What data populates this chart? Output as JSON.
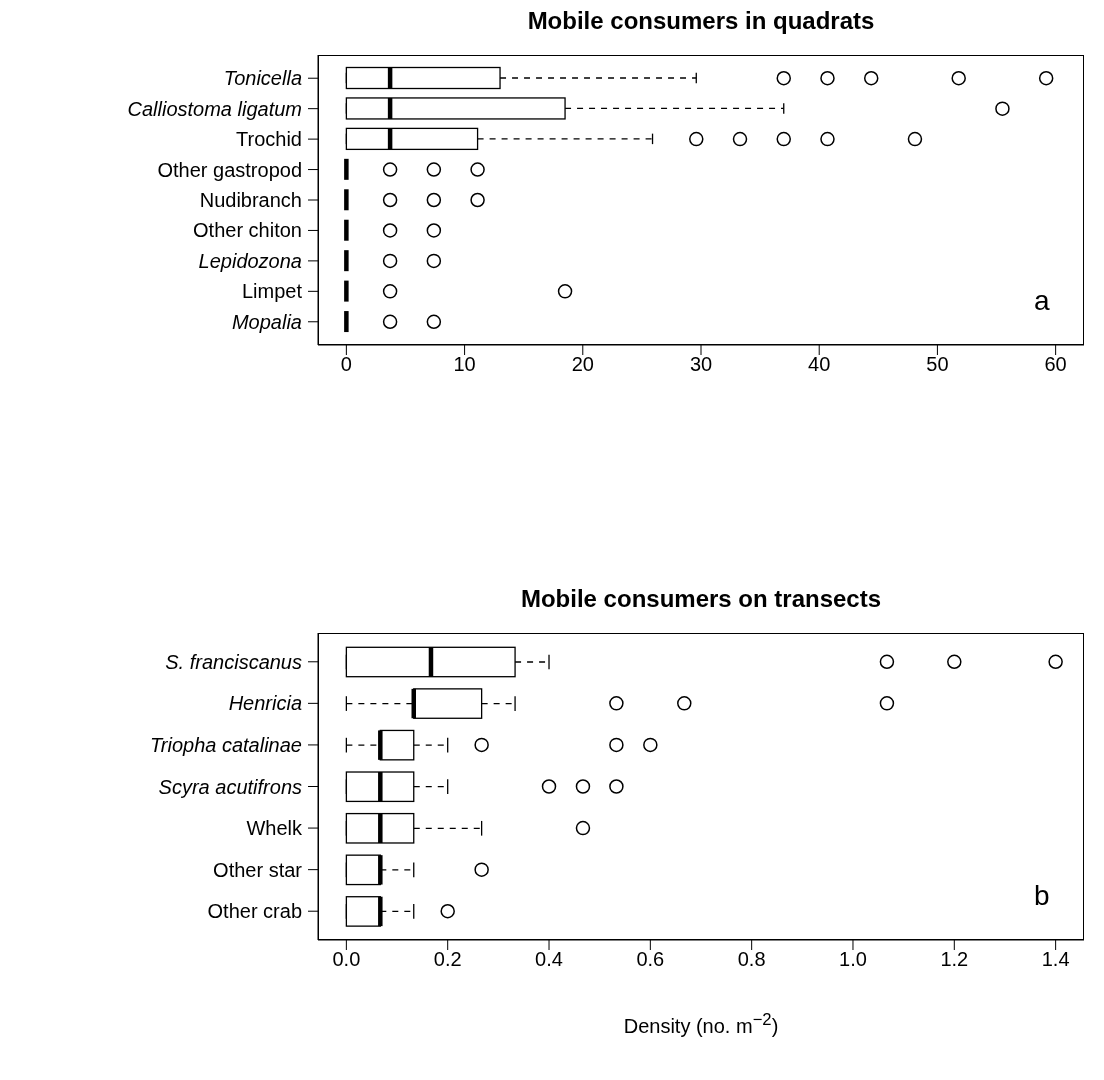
{
  "chart_data": [
    {
      "type": "box",
      "orientation": "horizontal",
      "title": "Mobile consumers in quadrats",
      "categories": [
        "Tonicella",
        "Calliostoma ligatum",
        "Trochid",
        "Other gastropod",
        "Nudibranch",
        "Other chiton",
        "Lepidozona",
        "Limpet",
        "Mopalia"
      ],
      "boxes": [
        {
          "low": 0,
          "q1": 0,
          "median": 3.7,
          "q3": 13,
          "high": 29.6,
          "outliers": [
            37,
            40.7,
            44.4,
            51.8,
            59.2
          ]
        },
        {
          "low": 0,
          "q1": 0,
          "median": 3.7,
          "q3": 18.5,
          "high": 37,
          "outliers": [
            55.5
          ]
        },
        {
          "low": 0,
          "q1": 0,
          "median": 3.7,
          "q3": 11.1,
          "high": 25.9,
          "outliers": [
            29.6,
            33.3,
            37,
            40.7,
            48.1
          ]
        },
        {
          "low": 0,
          "q1": 0,
          "median": 0,
          "q3": 0,
          "high": 0,
          "outliers": [
            3.7,
            7.4,
            11.1
          ]
        },
        {
          "low": 0,
          "q1": 0,
          "median": 0,
          "q3": 0,
          "high": 0,
          "outliers": [
            3.7,
            7.4,
            11.1
          ]
        },
        {
          "low": 0,
          "q1": 0,
          "median": 0,
          "q3": 0,
          "high": 0,
          "outliers": [
            3.7,
            7.4
          ]
        },
        {
          "low": 0,
          "q1": 0,
          "median": 0,
          "q3": 0,
          "high": 0,
          "outliers": [
            3.7,
            7.4
          ]
        },
        {
          "low": 0,
          "q1": 0,
          "median": 0,
          "q3": 0,
          "high": 0,
          "outliers": [
            3.7,
            18.5
          ]
        },
        {
          "low": 0,
          "q1": 0,
          "median": 0,
          "q3": 0,
          "high": 0,
          "outliers": [
            3.7,
            7.4
          ]
        }
      ],
      "xlim": [
        -2.4,
        62.4
      ],
      "xticks": [
        0,
        10,
        20,
        30,
        40,
        50,
        60
      ],
      "annotations": [
        "a"
      ]
    },
    {
      "type": "box",
      "orientation": "horizontal",
      "title": "Mobile consumers on transects",
      "xlabel": "Density (no. m$^{−2}$)",
      "categories": [
        "S. franciscanus",
        "Henricia",
        "Triopha catalinae",
        "Scyra acutifrons",
        "Whelk",
        "Other star",
        "Other crab"
      ],
      "boxes": [
        {
          "low": 0,
          "q1": 0,
          "median": 0.167,
          "q3": 0.333,
          "high": 0.4,
          "outliers": [
            1.067,
            1.2,
            1.4
          ]
        },
        {
          "low": 0,
          "q1": 0.133,
          "median": 0.133,
          "q3": 0.267,
          "high": 0.333,
          "outliers": [
            0.533,
            0.667,
            1.067
          ]
        },
        {
          "low": 0,
          "q1": 0.067,
          "median": 0.067,
          "q3": 0.133,
          "high": 0.2,
          "outliers": [
            0.267,
            0.533,
            0.6
          ]
        },
        {
          "low": 0,
          "q1": 0,
          "median": 0.067,
          "q3": 0.133,
          "high": 0.2,
          "outliers": [
            0.4,
            0.467,
            0.533
          ]
        },
        {
          "low": 0,
          "q1": 0,
          "median": 0.067,
          "q3": 0.133,
          "high": 0.267,
          "outliers": [
            0.467
          ]
        },
        {
          "low": 0,
          "q1": 0,
          "median": 0.067,
          "q3": 0.067,
          "high": 0.133,
          "outliers": [
            0.267
          ]
        },
        {
          "low": 0,
          "q1": 0,
          "median": 0.067,
          "q3": 0.067,
          "high": 0.133,
          "outliers": [
            0.2
          ]
        }
      ],
      "xlim": [
        -0.056,
        1.456
      ],
      "xticks": [
        {
          "value": 0,
          "label": "0.0"
        },
        {
          "value": 0.2,
          "label": "0.2"
        },
        {
          "value": 0.4,
          "label": "0.4"
        },
        {
          "value": 0.6,
          "label": "0.6"
        },
        {
          "value": 0.8,
          "label": "0.8"
        },
        {
          "value": 1,
          "label": "1.0"
        },
        {
          "value": 1.2,
          "label": "1.2"
        },
        {
          "value": 1.4,
          "label": "1.4"
        }
      ],
      "annotations": [
        "b"
      ]
    }
  ]
}
